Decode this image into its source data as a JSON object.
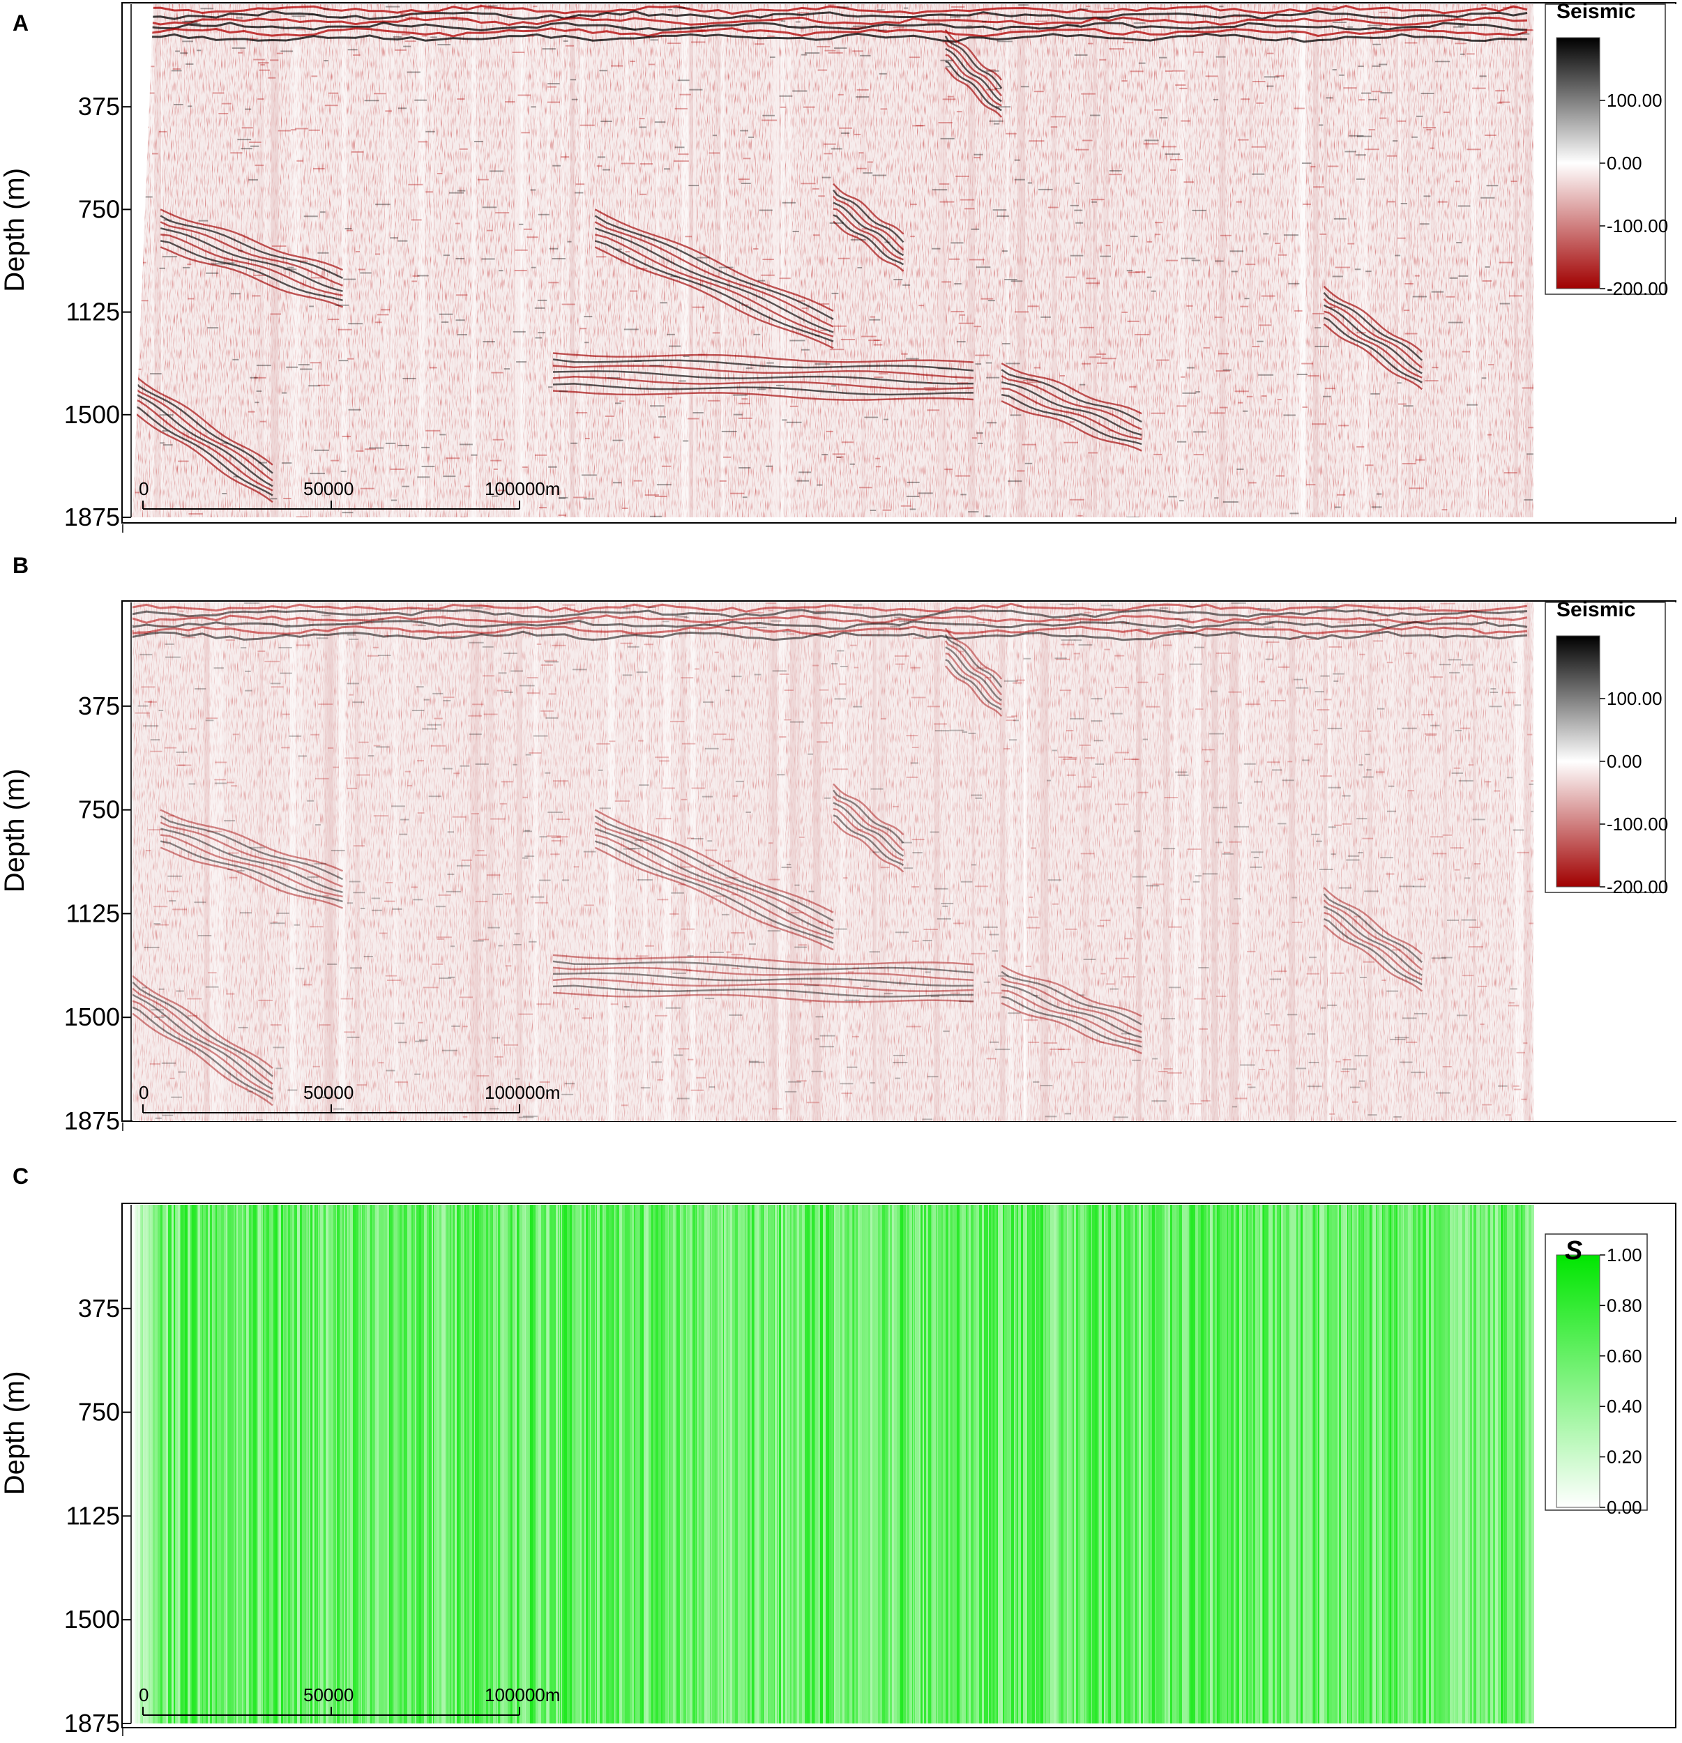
{
  "chart_data": [
    {
      "type": "heatmap",
      "panel_label": "A",
      "ylabel": "Depth (m)",
      "y_ticks": [
        375,
        750,
        1125,
        1500,
        1875
      ],
      "ylim": [
        0,
        1875
      ],
      "scale_bar": {
        "labels": [
          "0",
          "50000",
          "100000m"
        ],
        "values": [
          0,
          50000,
          100000
        ]
      },
      "colorbar": {
        "title": "Seismic",
        "ticks": [
          "100.00",
          "0.00",
          "-100.00",
          "-200.00"
        ],
        "tick_values": [
          100,
          0,
          -100,
          -200
        ],
        "range": [
          -200,
          200
        ],
        "colors": [
          "#000000",
          "#ffffff",
          "#a00000"
        ]
      },
      "style": {
        "amplitude": 1.0,
        "noise": 0.55,
        "left_edge_taper": true
      }
    },
    {
      "type": "heatmap",
      "panel_label": "B",
      "ylabel": "Depth (m)",
      "y_ticks": [
        375,
        750,
        1125,
        1500,
        1875
      ],
      "ylim": [
        0,
        1875
      ],
      "scale_bar": {
        "labels": [
          "0",
          "50000",
          "100000m"
        ],
        "values": [
          0,
          50000,
          100000
        ]
      },
      "colorbar": {
        "title": "Seismic",
        "ticks": [
          "100.00",
          "0.00",
          "-100.00",
          "-200.00"
        ],
        "tick_values": [
          100,
          0,
          -100,
          -200
        ],
        "range": [
          -200,
          200
        ],
        "colors": [
          "#000000",
          "#ffffff",
          "#a00000"
        ]
      },
      "style": {
        "amplitude": 0.6,
        "noise": 0.3,
        "left_edge_taper": false
      }
    },
    {
      "type": "heatmap",
      "panel_label": "C",
      "ylabel": "Depth (m)",
      "y_ticks": [
        375,
        750,
        1125,
        1500,
        1875
      ],
      "ylim": [
        0,
        1875
      ],
      "scale_bar": {
        "labels": [
          "0",
          "50000",
          "100000m"
        ],
        "values": [
          0,
          50000,
          100000
        ]
      },
      "colorbar": {
        "title": "S",
        "ticks": [
          "1.00",
          "0.80",
          "0.60",
          "0.40",
          "0.20",
          "0.00"
        ],
        "tick_values": [
          1,
          0.8,
          0.6,
          0.4,
          0.2,
          0
        ],
        "range": [
          0,
          1
        ],
        "colors": [
          "#ffffff",
          "#00e600"
        ]
      },
      "style": {
        "vertical_stripes": true,
        "typical_value": 0.6
      }
    }
  ]
}
